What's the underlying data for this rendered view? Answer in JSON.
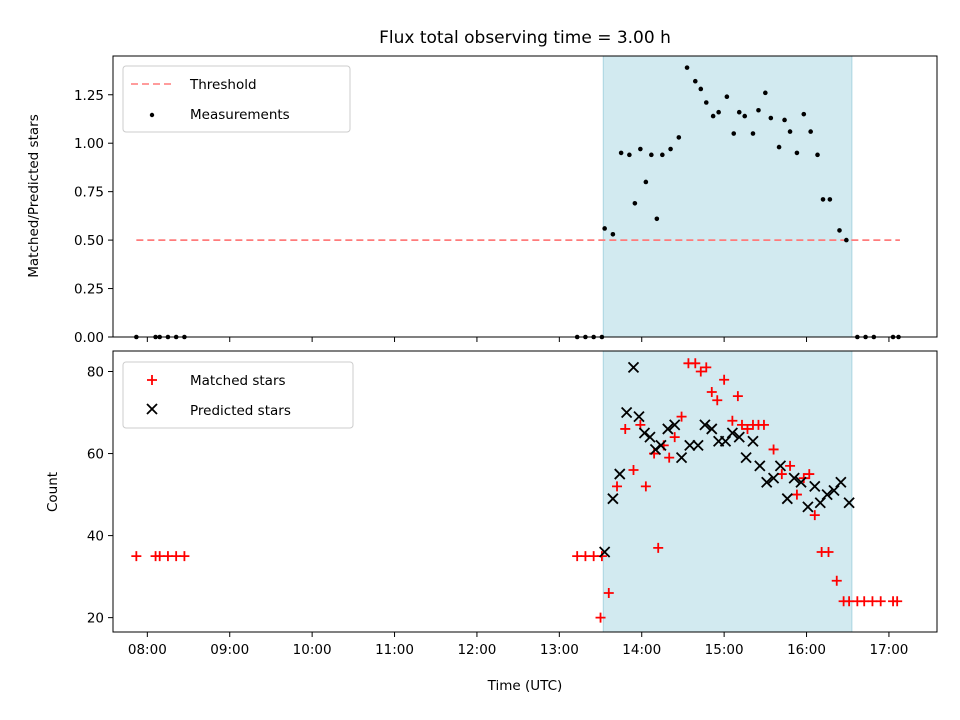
{
  "chart_data": [
    {
      "type": "scatter",
      "title": "Flux total observing time = 3.00 h",
      "xlabel": "",
      "ylabel": "Matched/Predicted stars",
      "xlim": [
        "07:35",
        "17:35"
      ],
      "ylim": [
        0,
        1.45
      ],
      "grid": false,
      "legend_position": "top-left",
      "xticks": [
        "08:00",
        "09:00",
        "10:00",
        "11:00",
        "12:00",
        "13:00",
        "14:00",
        "15:00",
        "16:00",
        "17:00"
      ],
      "yticks": [
        "0.00",
        "0.25",
        "0.50",
        "0.75",
        "1.00",
        "1.25"
      ],
      "shaded_interval": {
        "x0": "13:32",
        "x1": "16:33",
        "color": "#d2eaf0"
      },
      "threshold_line": {
        "name": "Threshold",
        "y": 0.5,
        "x0": "07:52",
        "x1": "17:08",
        "color": "#ff7b7b",
        "style": "dashed"
      },
      "series": [
        {
          "name": "Measurements",
          "marker": "dot",
          "color": "#000000",
          "points": [
            [
              "07:52",
              0
            ],
            [
              "08:06",
              0
            ],
            [
              "08:09",
              0
            ],
            [
              "08:15",
              0
            ],
            [
              "08:21",
              0
            ],
            [
              "08:27",
              0
            ],
            [
              "13:13",
              0
            ],
            [
              "13:19",
              0
            ],
            [
              "13:25",
              0
            ],
            [
              "13:31",
              0
            ],
            [
              "13:33",
              0.56
            ],
            [
              "13:39",
              0.53
            ],
            [
              "13:45",
              0.95
            ],
            [
              "13:51",
              0.94
            ],
            [
              "13:55",
              0.69
            ],
            [
              "13:59",
              0.97
            ],
            [
              "14:03",
              0.8
            ],
            [
              "14:07",
              0.94
            ],
            [
              "14:11",
              0.61
            ],
            [
              "14:15",
              0.94
            ],
            [
              "14:21",
              0.97
            ],
            [
              "14:27",
              1.03
            ],
            [
              "14:33",
              1.39
            ],
            [
              "14:39",
              1.32
            ],
            [
              "14:43",
              1.28
            ],
            [
              "14:47",
              1.21
            ],
            [
              "14:52",
              1.14
            ],
            [
              "14:56",
              1.16
            ],
            [
              "15:02",
              1.24
            ],
            [
              "15:07",
              1.05
            ],
            [
              "15:11",
              1.16
            ],
            [
              "15:15",
              1.14
            ],
            [
              "15:21",
              1.05
            ],
            [
              "15:25",
              1.17
            ],
            [
              "15:30",
              1.26
            ],
            [
              "15:34",
              1.13
            ],
            [
              "15:40",
              0.98
            ],
            [
              "15:44",
              1.12
            ],
            [
              "15:48",
              1.06
            ],
            [
              "15:53",
              0.95
            ],
            [
              "15:58",
              1.15
            ],
            [
              "16:03",
              1.06
            ],
            [
              "16:08",
              0.94
            ],
            [
              "16:12",
              0.71
            ],
            [
              "16:17",
              0.71
            ],
            [
              "16:24",
              0.55
            ],
            [
              "16:29",
              0.5
            ],
            [
              "16:37",
              0
            ],
            [
              "16:43",
              0
            ],
            [
              "16:49",
              0
            ],
            [
              "17:03",
              0
            ],
            [
              "17:07",
              0
            ]
          ]
        }
      ]
    },
    {
      "type": "scatter",
      "title": "",
      "xlabel": "Time (UTC)",
      "ylabel": "Count",
      "xlim": [
        "07:35",
        "17:35"
      ],
      "ylim": [
        16.5,
        85
      ],
      "grid": false,
      "legend_position": "top-left",
      "xticks": [
        "08:00",
        "09:00",
        "10:00",
        "11:00",
        "12:00",
        "13:00",
        "14:00",
        "15:00",
        "16:00",
        "17:00"
      ],
      "yticks": [
        "20",
        "40",
        "60",
        "80"
      ],
      "shaded_interval": {
        "x0": "13:32",
        "x1": "16:33",
        "color": "#d2eaf0"
      },
      "series": [
        {
          "name": "Matched stars",
          "marker": "plus",
          "color": "#ff0000",
          "points": [
            [
              "07:52",
              35
            ],
            [
              "08:06",
              35
            ],
            [
              "08:09",
              35
            ],
            [
              "08:15",
              35
            ],
            [
              "08:21",
              35
            ],
            [
              "08:27",
              35
            ],
            [
              "13:13",
              35
            ],
            [
              "13:19",
              35
            ],
            [
              "13:25",
              35
            ],
            [
              "13:31",
              35
            ],
            [
              "13:30",
              20
            ],
            [
              "13:36",
              26
            ],
            [
              "13:42",
              52
            ],
            [
              "13:48",
              66
            ],
            [
              "13:54",
              56
            ],
            [
              "13:59",
              67
            ],
            [
              "14:03",
              52
            ],
            [
              "14:09",
              60
            ],
            [
              "14:12",
              37
            ],
            [
              "14:16",
              62
            ],
            [
              "14:20",
              59
            ],
            [
              "14:24",
              64
            ],
            [
              "14:29",
              69
            ],
            [
              "14:34",
              82
            ],
            [
              "14:39",
              82
            ],
            [
              "14:43",
              80
            ],
            [
              "14:47",
              81
            ],
            [
              "14:51",
              75
            ],
            [
              "14:55",
              73
            ],
            [
              "15:00",
              78
            ],
            [
              "15:06",
              68
            ],
            [
              "15:10",
              74
            ],
            [
              "15:13",
              67
            ],
            [
              "15:17",
              66
            ],
            [
              "15:21",
              67
            ],
            [
              "15:25",
              67
            ],
            [
              "15:29",
              67
            ],
            [
              "15:36",
              61
            ],
            [
              "15:42",
              55
            ],
            [
              "15:48",
              57
            ],
            [
              "15:53",
              50
            ],
            [
              "15:58",
              54
            ],
            [
              "16:02",
              55
            ],
            [
              "16:06",
              45
            ],
            [
              "16:11",
              36
            ],
            [
              "16:16",
              36
            ],
            [
              "16:22",
              29
            ],
            [
              "16:27",
              24
            ],
            [
              "16:31",
              24
            ],
            [
              "16:37",
              24
            ],
            [
              "16:42",
              24
            ],
            [
              "16:48",
              24
            ],
            [
              "16:54",
              24
            ],
            [
              "17:03",
              24
            ],
            [
              "17:06",
              24
            ]
          ]
        },
        {
          "name": "Predicted stars",
          "marker": "x",
          "color": "#000000",
          "points": [
            [
              "13:33",
              36
            ],
            [
              "13:39",
              49
            ],
            [
              "13:44",
              55
            ],
            [
              "13:49",
              70
            ],
            [
              "13:54",
              81
            ],
            [
              "13:58",
              69
            ],
            [
              "14:02",
              65
            ],
            [
              "14:06",
              64
            ],
            [
              "14:10",
              61
            ],
            [
              "14:14",
              62
            ],
            [
              "14:19",
              66
            ],
            [
              "14:24",
              67
            ],
            [
              "14:29",
              59
            ],
            [
              "14:35",
              62
            ],
            [
              "14:41",
              62
            ],
            [
              "14:46",
              67
            ],
            [
              "14:51",
              66
            ],
            [
              "14:56",
              63
            ],
            [
              "15:01",
              63
            ],
            [
              "15:06",
              65
            ],
            [
              "15:11",
              64
            ],
            [
              "15:16",
              59
            ],
            [
              "15:21",
              63
            ],
            [
              "15:26",
              57
            ],
            [
              "15:31",
              53
            ],
            [
              "15:36",
              54
            ],
            [
              "15:41",
              57
            ],
            [
              "15:46",
              49
            ],
            [
              "15:51",
              54
            ],
            [
              "15:56",
              53
            ],
            [
              "16:01",
              47
            ],
            [
              "16:06",
              52
            ],
            [
              "16:10",
              48
            ],
            [
              "16:15",
              50
            ],
            [
              "16:20",
              51
            ],
            [
              "16:25",
              53
            ],
            [
              "16:31",
              48
            ]
          ]
        }
      ]
    }
  ]
}
